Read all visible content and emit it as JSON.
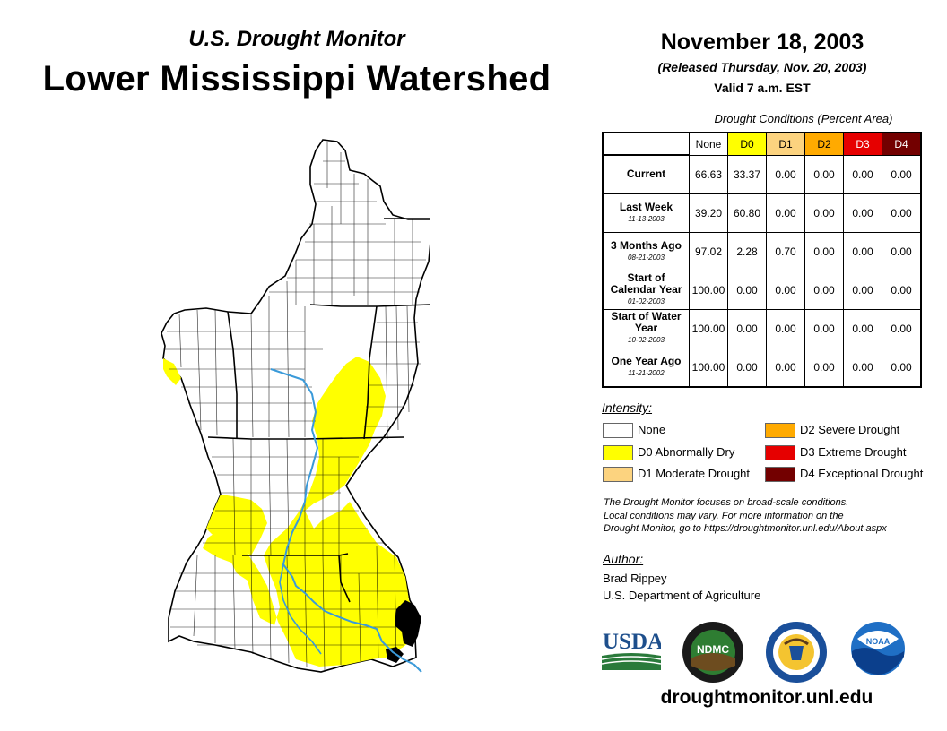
{
  "header": {
    "subtitle": "U.S. Drought Monitor",
    "title": "Lower Mississippi Watershed",
    "date": "November 18, 2003",
    "released": "(Released Thursday, Nov. 20, 2003)",
    "valid": "Valid 7 a.m. EST"
  },
  "table": {
    "caption": "Drought Conditions (Percent Area)",
    "columns": [
      {
        "label": "None",
        "color": "#ffffff"
      },
      {
        "label": "D0",
        "color": "#ffff00"
      },
      {
        "label": "D1",
        "color": "#fcd37f"
      },
      {
        "label": "D2",
        "color": "#ffaa00"
      },
      {
        "label": "D3",
        "color": "#e60000"
      },
      {
        "label": "D4",
        "color": "#730000"
      }
    ],
    "rows": [
      {
        "label": "Current",
        "sub": "",
        "values": [
          "66.63",
          "33.37",
          "0.00",
          "0.00",
          "0.00",
          "0.00"
        ]
      },
      {
        "label": "Last Week",
        "sub": "11-13-2003",
        "values": [
          "39.20",
          "60.80",
          "0.00",
          "0.00",
          "0.00",
          "0.00"
        ]
      },
      {
        "label": "3 Months Ago",
        "sub": "08-21-2003",
        "values": [
          "97.02",
          "2.28",
          "0.70",
          "0.00",
          "0.00",
          "0.00"
        ]
      },
      {
        "label": "Start of Calendar Year",
        "sub": "01-02-2003",
        "values": [
          "100.00",
          "0.00",
          "0.00",
          "0.00",
          "0.00",
          "0.00"
        ]
      },
      {
        "label": "Start of Water Year",
        "sub": "10-02-2003",
        "values": [
          "100.00",
          "0.00",
          "0.00",
          "0.00",
          "0.00",
          "0.00"
        ]
      },
      {
        "label": "One Year Ago",
        "sub": "11-21-2002",
        "values": [
          "100.00",
          "0.00",
          "0.00",
          "0.00",
          "0.00",
          "0.00"
        ]
      }
    ]
  },
  "legend": {
    "title": "Intensity:",
    "items": [
      {
        "label": "None",
        "color": "#ffffff"
      },
      {
        "label": "D0 Abnormally Dry",
        "color": "#ffff00"
      },
      {
        "label": "D1 Moderate Drought",
        "color": "#fcd37f"
      },
      {
        "label": "D2 Severe Drought",
        "color": "#ffaa00"
      },
      {
        "label": "D3 Extreme Drought",
        "color": "#e60000"
      },
      {
        "label": "D4 Exceptional Drought",
        "color": "#730000"
      }
    ]
  },
  "note": {
    "line1": "The Drought Monitor focuses on broad-scale conditions.",
    "line2": "Local conditions may vary. For more information on the",
    "line3": "Drought Monitor, go to https://droughtmonitor.unl.edu/About.aspx"
  },
  "author": {
    "title": "Author:",
    "name": "Brad Rippey",
    "org": "U.S. Department of Agriculture"
  },
  "logos": {
    "usda": "USDA",
    "ndmc": "NDMC",
    "noaa": "NOAA"
  },
  "footer": {
    "url": "droughtmonitor.unl.edu"
  },
  "map": {
    "none_color": "#ffffff",
    "d0_color": "#ffff00",
    "river_color": "#3a9ad9",
    "border_color": "#000000"
  }
}
